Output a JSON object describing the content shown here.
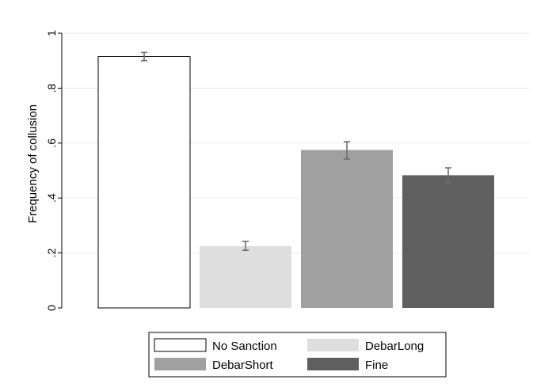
{
  "chart_data": {
    "type": "bar",
    "title": "",
    "xlabel": "",
    "ylabel": "Frequency of collusion",
    "ylim": [
      0,
      1
    ],
    "yticks": [
      0,
      0.2,
      0.4,
      0.6,
      0.8,
      1
    ],
    "ytick_labels": [
      "0",
      ".2",
      ".4",
      ".6",
      ".8",
      "1"
    ],
    "grid": true,
    "legend_position": "bottom",
    "series": [
      {
        "name": "No Sanction",
        "value": 0.915,
        "err_low": 0.9,
        "err_high": 0.93,
        "color": "#ffffff"
      },
      {
        "name": "DebarLong",
        "value": 0.225,
        "err_low": 0.21,
        "err_high": 0.242,
        "color": "#dedede"
      },
      {
        "name": "DebarShort",
        "value": 0.575,
        "err_low": 0.542,
        "err_high": 0.605,
        "color": "#a0a0a0"
      },
      {
        "name": "Fine",
        "value": 0.483,
        "err_low": 0.455,
        "err_high": 0.51,
        "color": "#5f5f5f"
      }
    ],
    "errorbar_color": "#6e6e6e"
  }
}
